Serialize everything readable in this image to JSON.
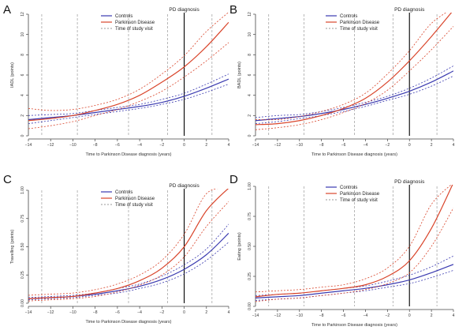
{
  "colors": {
    "controls": "#3a3ab0",
    "pd": "#d9452b",
    "visit": "#9a9a9a",
    "axis": "#444444",
    "diagnosis": "#000000"
  },
  "legend": {
    "controls": "Controls",
    "pd": "Parkinson Disease",
    "visit": "Time of study visit"
  },
  "pd_diagnosis_label": "PD diagnosis",
  "chart_data": [
    {
      "panel": "A",
      "type": "line",
      "title": "",
      "xlabel": "Time to Parkinson Disease diagnosis (years)",
      "ylabel": "IADL (points)",
      "xlim": [
        -14,
        4
      ],
      "ylim": [
        0,
        12
      ],
      "xticks": [
        -14,
        -12,
        -10,
        -8,
        -6,
        -4,
        -2,
        0,
        2,
        4
      ],
      "yticks": [
        0,
        2,
        4,
        6,
        8,
        10,
        12
      ],
      "visit_times": [
        -12.8,
        -9.6,
        -5.0,
        -1.5,
        2.5
      ],
      "diagnosis_x": 0,
      "legend_position": "top-center",
      "x": [
        -14,
        -12,
        -10,
        -8,
        -6,
        -4,
        -2,
        0,
        2,
        4
      ],
      "series": [
        {
          "name": "Controls",
          "values": [
            1.6,
            1.8,
            2.0,
            2.3,
            2.6,
            2.9,
            3.3,
            3.9,
            4.7,
            5.6
          ],
          "lower": [
            1.2,
            1.5,
            1.8,
            2.1,
            2.4,
            2.7,
            3.1,
            3.6,
            4.3,
            5.1
          ],
          "upper": [
            2.0,
            2.1,
            2.2,
            2.5,
            2.8,
            3.1,
            3.6,
            4.2,
            5.1,
            6.1
          ]
        },
        {
          "name": "Parkinson Disease",
          "values": [
            1.5,
            1.7,
            2.0,
            2.5,
            3.1,
            4.0,
            5.3,
            6.8,
            8.8,
            11.2
          ],
          "lower": [
            0.7,
            1.0,
            1.4,
            2.0,
            2.6,
            3.4,
            4.4,
            5.8,
            7.4,
            9.2
          ],
          "upper": [
            2.7,
            2.5,
            2.6,
            3.0,
            3.6,
            4.6,
            6.1,
            7.9,
            10.3,
            12.2
          ]
        }
      ]
    },
    {
      "panel": "B",
      "type": "line",
      "title": "",
      "xlabel": "Time to Parkinson Disease diagnosis (years)",
      "ylabel": "BADL (points)",
      "xlim": [
        -14,
        4
      ],
      "ylim": [
        0,
        12
      ],
      "xticks": [
        -14,
        -12,
        -10,
        -8,
        -6,
        -4,
        -2,
        0,
        2,
        4
      ],
      "yticks": [
        0,
        2,
        4,
        6,
        8,
        10,
        12
      ],
      "visit_times": [
        -12.8,
        -9.6,
        -5.0,
        -1.5,
        2.5
      ],
      "diagnosis_x": 0,
      "legend_position": "top-center",
      "x": [
        -14,
        -12,
        -10,
        -8,
        -6,
        -4,
        -2,
        0,
        2,
        4
      ],
      "series": [
        {
          "name": "Controls",
          "values": [
            1.5,
            1.7,
            1.9,
            2.2,
            2.6,
            3.1,
            3.7,
            4.4,
            5.3,
            6.4
          ],
          "lower": [
            1.2,
            1.4,
            1.7,
            2.0,
            2.4,
            2.9,
            3.5,
            4.1,
            4.9,
            5.9
          ],
          "upper": [
            1.8,
            2.0,
            2.1,
            2.4,
            2.8,
            3.3,
            3.9,
            4.7,
            5.7,
            6.9
          ]
        },
        {
          "name": "Parkinson Disease",
          "values": [
            1.1,
            1.2,
            1.5,
            2.0,
            2.7,
            3.7,
            5.3,
            7.4,
            9.8,
            12.4
          ],
          "lower": [
            0.6,
            0.8,
            1.1,
            1.6,
            2.3,
            3.2,
            4.5,
            6.4,
            8.5,
            10.8
          ],
          "upper": [
            1.6,
            1.6,
            1.9,
            2.4,
            3.1,
            4.2,
            6.1,
            8.4,
            11.1,
            12.6
          ]
        }
      ]
    },
    {
      "panel": "C",
      "type": "line",
      "title": "",
      "xlabel": "Time to Parkinson Disease diagnosis (years)",
      "ylabel": "Travelling (points)",
      "xlim": [
        -14,
        4
      ],
      "ylim": [
        0,
        1
      ],
      "xticks": [
        -14,
        -12,
        -10,
        -8,
        -6,
        -4,
        -2,
        0,
        2,
        4
      ],
      "yticks": [
        0.0,
        0.25,
        0.5,
        0.75,
        1.0
      ],
      "ytick_labels": [
        "0.00",
        "0.25",
        "0.50",
        "0.75",
        "1.00"
      ],
      "visit_times": [
        -12.8,
        -9.6,
        -5.0,
        -1.5,
        2.5
      ],
      "diagnosis_x": 0,
      "legend_position": "top-center",
      "x": [
        -14,
        -12,
        -10,
        -8,
        -6,
        -4,
        -2,
        0,
        2,
        4
      ],
      "series": [
        {
          "name": "Controls",
          "values": [
            0.04,
            0.05,
            0.06,
            0.08,
            0.11,
            0.15,
            0.21,
            0.3,
            0.43,
            0.62
          ],
          "lower": [
            0.03,
            0.04,
            0.05,
            0.07,
            0.09,
            0.13,
            0.18,
            0.26,
            0.38,
            0.54
          ],
          "upper": [
            0.05,
            0.06,
            0.07,
            0.09,
            0.13,
            0.17,
            0.24,
            0.34,
            0.48,
            0.7
          ]
        },
        {
          "name": "Parkinson Disease",
          "values": [
            0.04,
            0.05,
            0.06,
            0.09,
            0.13,
            0.2,
            0.31,
            0.5,
            0.82,
            1.02
          ],
          "lower": [
            0.02,
            0.03,
            0.04,
            0.06,
            0.1,
            0.16,
            0.25,
            0.41,
            0.68,
            0.9
          ],
          "upper": [
            0.07,
            0.08,
            0.09,
            0.12,
            0.17,
            0.25,
            0.38,
            0.61,
            0.97,
            1.02
          ]
        }
      ]
    },
    {
      "panel": "D",
      "type": "line",
      "title": "",
      "xlabel": "Time to Parkinson Disease diagnosis (years)",
      "ylabel": "Eating (points)",
      "xlim": [
        -14,
        4
      ],
      "ylim": [
        0,
        1
      ],
      "xticks": [
        -14,
        -12,
        -10,
        -8,
        -6,
        -4,
        -2,
        0,
        2,
        4
      ],
      "yticks": [
        0.0,
        0.25,
        0.5,
        0.75,
        1.0
      ],
      "ytick_labels": [
        "0.00",
        "0.25",
        "0.50",
        "0.75",
        "1.00"
      ],
      "visit_times": [
        -12.8,
        -9.6,
        -5.0,
        -1.5,
        2.5
      ],
      "diagnosis_x": 0,
      "legend_position": "top-center",
      "x": [
        -14,
        -12,
        -10,
        -8,
        -6,
        -4,
        -2,
        0,
        2,
        4
      ],
      "series": [
        {
          "name": "Controls",
          "values": [
            0.07,
            0.08,
            0.09,
            0.11,
            0.13,
            0.15,
            0.18,
            0.22,
            0.28,
            0.35
          ],
          "lower": [
            0.05,
            0.06,
            0.07,
            0.09,
            0.11,
            0.13,
            0.16,
            0.19,
            0.24,
            0.3
          ],
          "upper": [
            0.09,
            0.1,
            0.11,
            0.13,
            0.15,
            0.17,
            0.21,
            0.26,
            0.33,
            0.42
          ]
        },
        {
          "name": "Parkinson Disease",
          "values": [
            0.08,
            0.1,
            0.11,
            0.13,
            0.15,
            0.18,
            0.25,
            0.38,
            0.65,
            1.03
          ],
          "lower": [
            0.04,
            0.06,
            0.07,
            0.09,
            0.11,
            0.14,
            0.19,
            0.28,
            0.5,
            0.82
          ],
          "upper": [
            0.12,
            0.13,
            0.14,
            0.16,
            0.18,
            0.23,
            0.32,
            0.5,
            0.85,
            1.03
          ]
        }
      ]
    }
  ]
}
